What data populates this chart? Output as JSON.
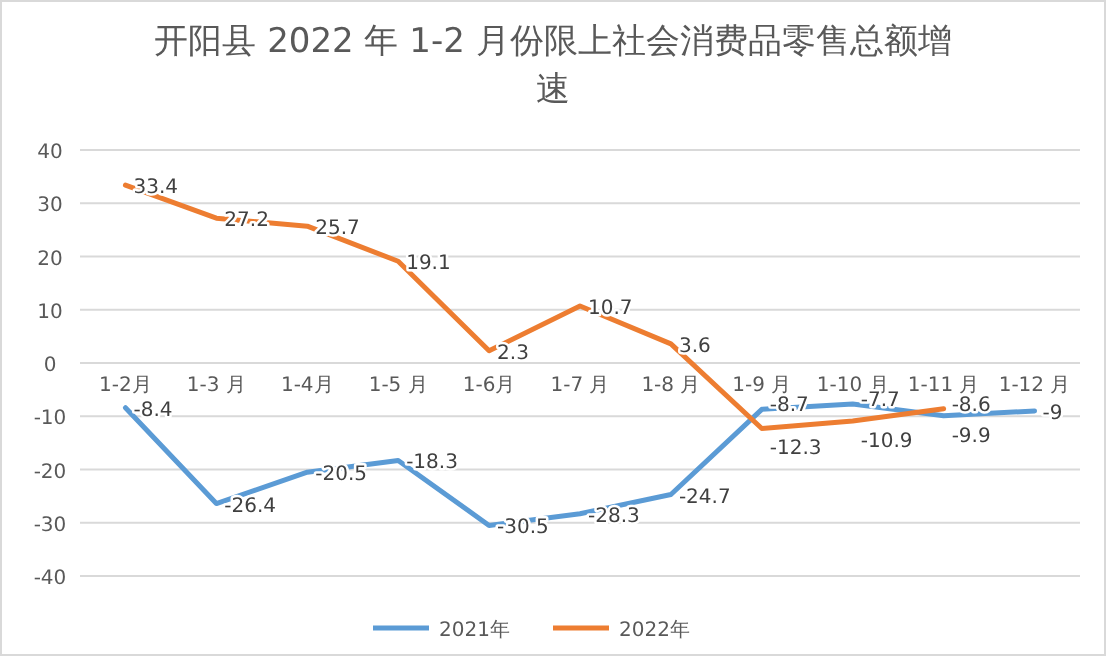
{
  "chart_data": {
    "type": "line",
    "title": "开阳县 2022 年 1-2 月份限上社会消费品零售总额增速",
    "categories": [
      "1-2月",
      "1-3 月",
      "1-4月",
      "1-5 月",
      "1-6月",
      "1-7 月",
      "1-8 月",
      "1-9 月",
      "1-10 月",
      "1-11 月",
      "1-12 月"
    ],
    "series": [
      {
        "name": "2021年",
        "color": "#5b9bd5",
        "values": [
          -8.4,
          -26.4,
          -20.5,
          -18.3,
          -30.5,
          -28.3,
          -24.7,
          -8.7,
          -7.7,
          -9.9,
          -9
        ]
      },
      {
        "name": "2022年",
        "color": "#ed7d31",
        "values": [
          33.4,
          27.2,
          25.7,
          19.1,
          2.3,
          10.7,
          3.6,
          -12.3,
          -10.9,
          -8.6,
          null
        ]
      }
    ],
    "ylim": [
      -40,
      40
    ],
    "yticks": [
      -40,
      -30,
      -20,
      -10,
      0,
      10,
      20,
      30,
      40
    ],
    "grid": "y",
    "legend": "bottom",
    "data_labels": true
  }
}
